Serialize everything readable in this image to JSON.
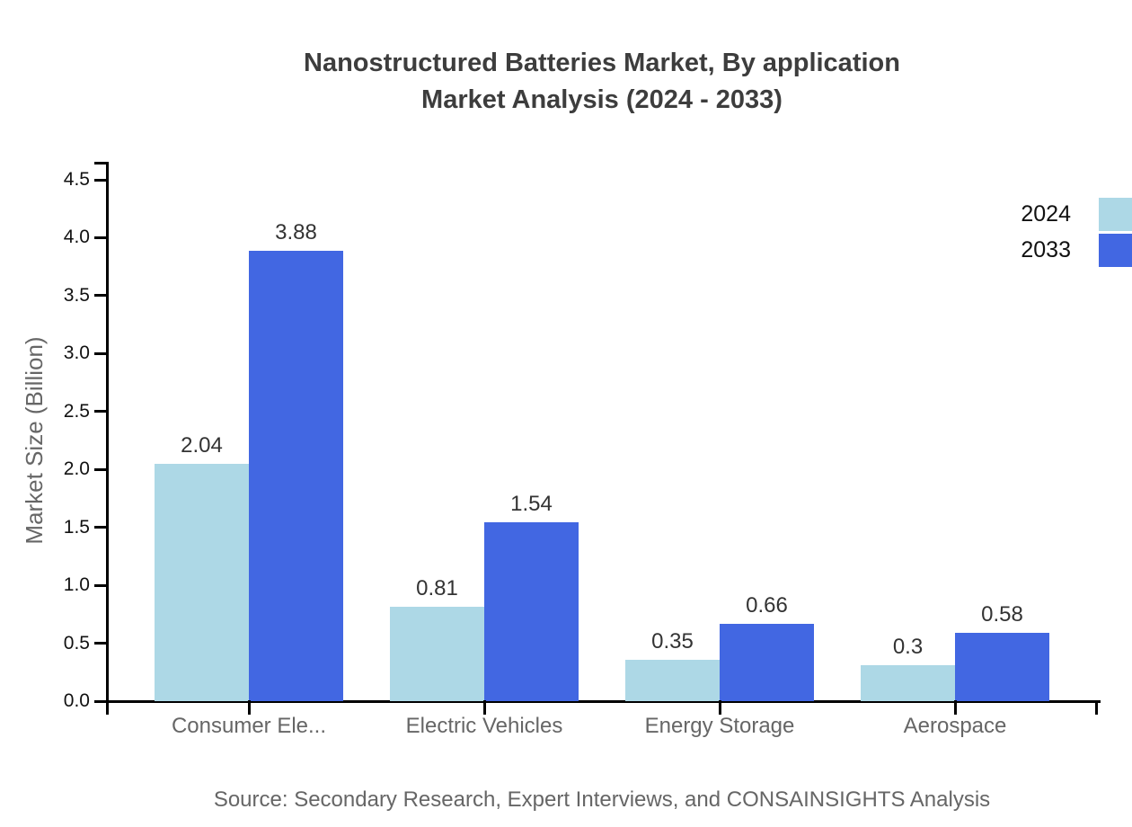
{
  "title": {
    "line1": "Nanostructured Batteries Market, By application",
    "line2": "Market Analysis (2024 - 2033)"
  },
  "source": "Source: Secondary Research, Expert Interviews, and CONSAINSIGHTS Analysis",
  "chart_data": {
    "type": "bar",
    "title": "Nanostructured Batteries Market, By application Market Analysis (2024 - 2033)",
    "categories": [
      "Consumer Ele...",
      "Electric Vehicles",
      "Energy Storage",
      "Aerospace"
    ],
    "series": [
      {
        "name": "2024",
        "color": "#add8e6",
        "values": [
          2.04,
          0.81,
          0.35,
          0.3
        ]
      },
      {
        "name": "2033",
        "color": "#4267e2",
        "values": [
          3.88,
          1.54,
          0.66,
          0.58
        ]
      }
    ],
    "xlabel": "",
    "ylabel": "Market Size (Billion)",
    "ylim": [
      0,
      4.5
    ],
    "ytick_step": 0.5,
    "yticks": [
      "0.0",
      "0.5",
      "1.0",
      "1.5",
      "2.0",
      "2.5",
      "3.0",
      "3.5",
      "4.0",
      "4.5"
    ],
    "grid": false,
    "legend_position": "top-right",
    "axis_color": "#000000"
  }
}
